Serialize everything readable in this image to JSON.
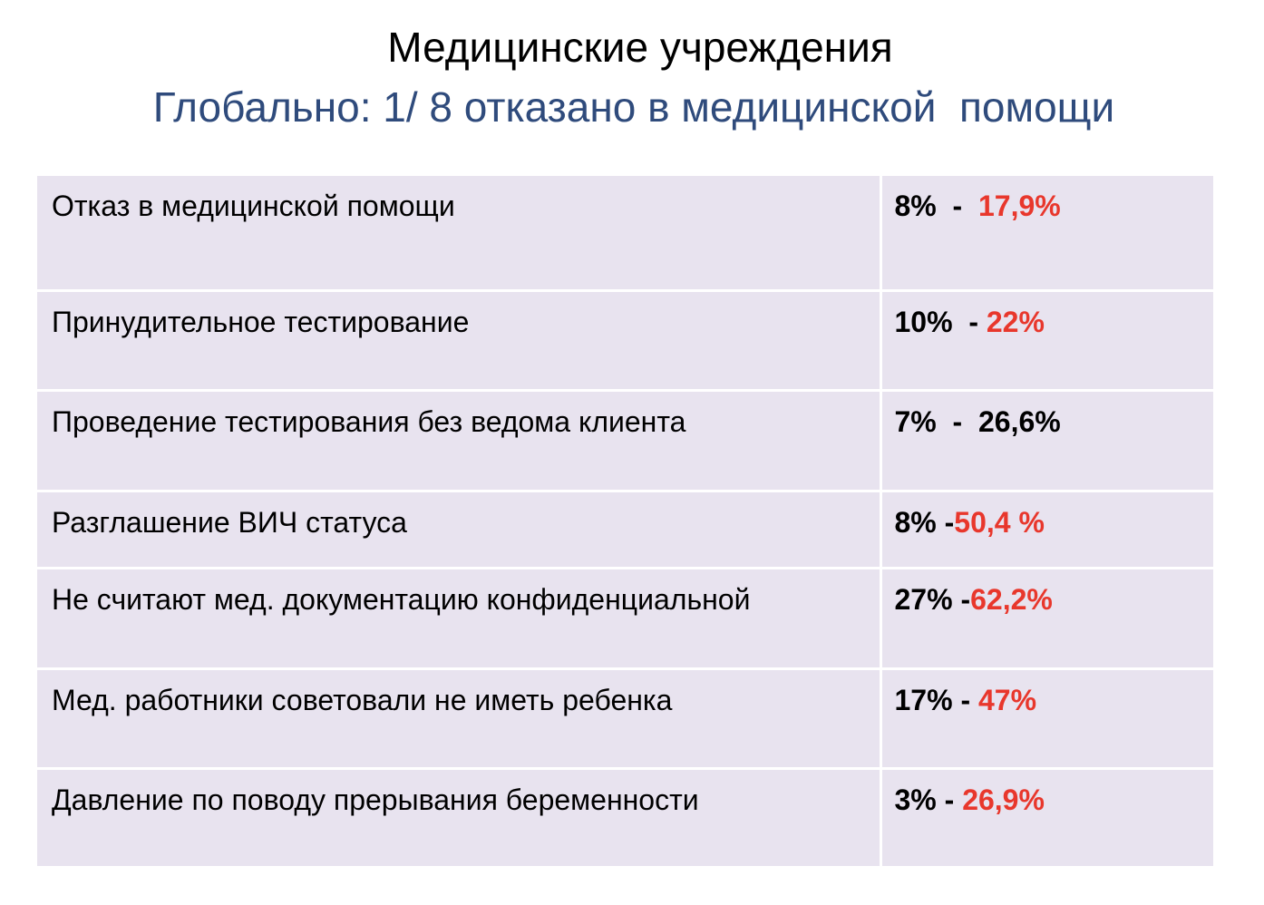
{
  "slide": {
    "title": "Медицинские учреждения",
    "subtitle": "Глобально: 1/ 8 отказано в медицинской  помощи"
  },
  "colors": {
    "subtitle": "#2f4b7c",
    "table_background": "#e8e3ef",
    "highlight_red": "#e8372c"
  },
  "table": {
    "rows": [
      {
        "label": "Отказ в медицинской помощи",
        "value_a": "8%  -  ",
        "value_b": "17,9%",
        "value_b_red": true
      },
      {
        "label": "Принудительное тестирование",
        "value_a": "10%  - ",
        "value_b": "22%",
        "value_b_red": true
      },
      {
        "label": "Проведение тестирования без ведома клиента",
        "value_a": "7%  -  ",
        "value_b": "26,6%",
        "value_b_red": false
      },
      {
        "label": "Разглашение ВИЧ статуса",
        "value_a": "8% -",
        "value_b": "50,4 %",
        "value_b_red": true
      },
      {
        "label": "Не считают мед. документацию конфиденциальной",
        "value_a": "27% -",
        "value_b": "62,2%",
        "value_b_red": true
      },
      {
        "label": "Мед. работники советовали не иметь ребенка",
        "value_a": "17% - ",
        "value_b": "47%",
        "value_b_red": true
      },
      {
        "label": "Давление по поводу прерывания беременности",
        "value_a": "3% - ",
        "value_b": "26,9%",
        "value_b_red": true
      }
    ]
  }
}
